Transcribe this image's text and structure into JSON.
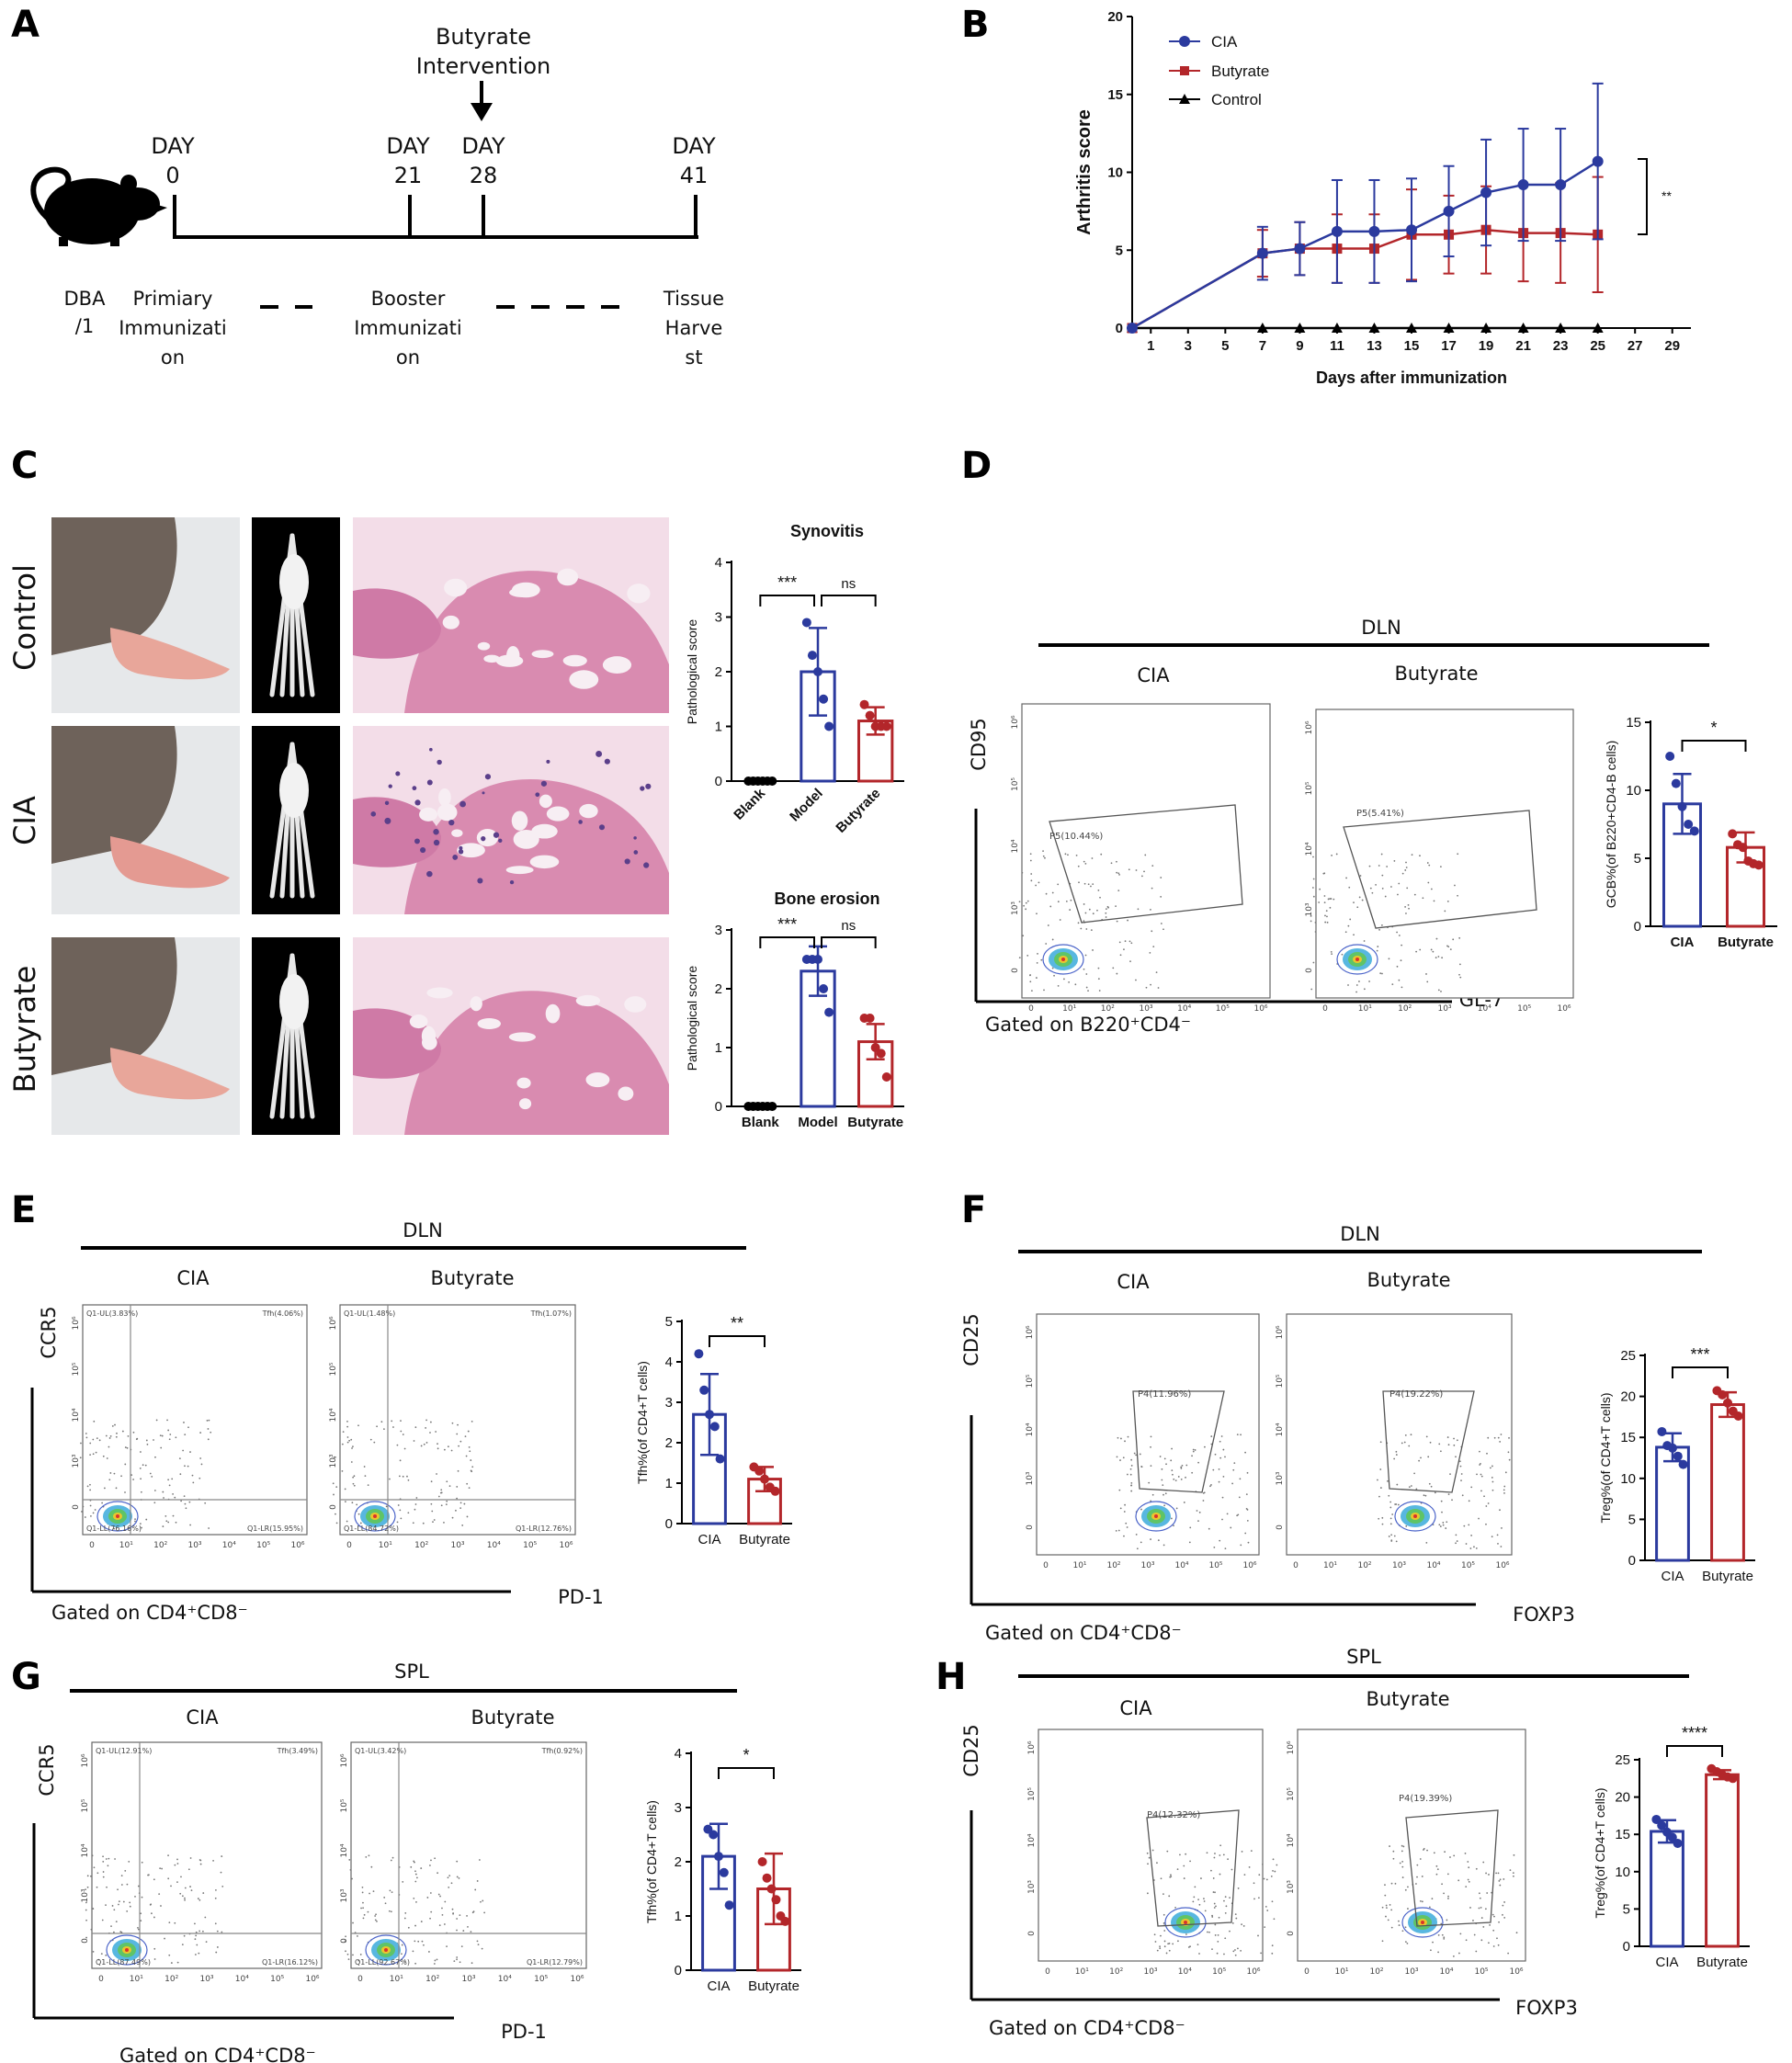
{
  "panels": {
    "A": {
      "label": "A",
      "intervention": [
        "Butyrate",
        "Intervention"
      ],
      "days": [
        {
          "label": "DAY",
          "num": "0"
        },
        {
          "label": "DAY",
          "num": "21"
        },
        {
          "label": "DAY",
          "num": "28"
        },
        {
          "label": "DAY",
          "num": "41"
        }
      ],
      "strain": [
        "DBA",
        "/1"
      ],
      "phases": [
        [
          "Primiary",
          "Immunizati",
          "on"
        ],
        [
          "Booster",
          "Immunizati",
          "on"
        ],
        [
          "Tissue",
          "Harve",
          "st"
        ]
      ]
    },
    "B": {
      "label": "B"
    },
    "C": {
      "label": "C",
      "rows": [
        "Control",
        "CIA",
        "Butyrate"
      ],
      "photo_colors": {
        "fur": "#6e625a",
        "paw": "#e8a69a",
        "bg": "#e6e8ea",
        "he_pink": "#d98bb0",
        "he_bg": "#f3dde8",
        "xray_bg": "#000000"
      }
    },
    "D": {
      "label": "D",
      "tissue": "DLN",
      "groups": [
        "CIA",
        "Butyrate"
      ],
      "yaxis": "CD95",
      "xaxis": "GL-7",
      "gated": "Gated on B220⁺CD4⁻",
      "gates": [
        "P5(10.44%)",
        "P5(5.41%)"
      ]
    },
    "E": {
      "label": "E",
      "tissue": "DLN",
      "groups": [
        "CIA",
        "Butyrate"
      ],
      "yaxis": "CCR5",
      "xaxis": "PD-1",
      "gated": "Gated on CD4⁺CD8⁻",
      "quadrants": [
        {
          "ul": "Q1-UL(3.83%)",
          "ur": "Tfh(4.06%)",
          "ll": "Q1-LL(76.16%)",
          "lr": "Q1-LR(15.95%)"
        },
        {
          "ul": "Q1-UL(1.48%)",
          "ur": "Tfh(1.07%)",
          "ll": "Q1-LL(84.72%)",
          "lr": "Q1-LR(12.76%)"
        }
      ]
    },
    "F": {
      "label": "F",
      "tissue": "DLN",
      "groups": [
        "CIA",
        "Butyrate"
      ],
      "yaxis": "CD25",
      "xaxis": "FOXP3",
      "gated": "Gated on CD4⁺CD8⁻",
      "gates": [
        "P4(11.96%)",
        "P4(19.22%)"
      ]
    },
    "G": {
      "label": "G",
      "tissue": "SPL",
      "groups": [
        "CIA",
        "Butyrate"
      ],
      "yaxis": "CCR5",
      "xaxis": "PD-1",
      "gated": "Gated on CD4⁺CD8⁻",
      "quadrants": [
        {
          "ul": "Q1-UL(12.91%)",
          "ur": "Tfh(3.49%)",
          "ll": "Q1-LL(87.49%)",
          "lr": "Q1-LR(16.12%)"
        },
        {
          "ul": "Q1-UL(3.42%)",
          "ur": "Tfh(0.92%)",
          "ll": "Q1-LL(92.67%)",
          "lr": "Q1-LR(12.79%)"
        }
      ]
    },
    "H": {
      "label": "H",
      "tissue": "SPL",
      "groups": [
        "CIA",
        "Butyrate"
      ],
      "yaxis": "CD25",
      "xaxis": "FOXP3",
      "gated": "Gated on CD4⁺CD8⁻",
      "gates": [
        "P4(12.32%)",
        "P4(19.39%)"
      ]
    }
  },
  "flow_ticks": {
    "x": [
      "0",
      "10¹",
      "10²",
      "10³",
      "10⁴",
      "10⁵",
      "10⁶"
    ],
    "y": [
      "0",
      "10³",
      "10⁴",
      "10⁵",
      "10⁶"
    ]
  },
  "colors": {
    "cia": "#2b3a9e",
    "butyrate": "#b3262a",
    "control": "#000000"
  },
  "chart_data": [
    {
      "id": "B",
      "type": "line",
      "xlabel": "Days after immunization",
      "ylabel": "Arthritis score",
      "xlim": [
        0,
        30
      ],
      "ylim": [
        0,
        20
      ],
      "xticks": [
        1,
        3,
        5,
        7,
        9,
        11,
        13,
        15,
        17,
        19,
        21,
        23,
        25,
        27,
        29
      ],
      "yticks": [
        0,
        5,
        10,
        15,
        20
      ],
      "legend": "top-left",
      "significance": "**",
      "series": [
        {
          "name": "CIA",
          "color": "#2b3a9e",
          "marker": "circle",
          "x": [
            0,
            7,
            9,
            11,
            13,
            15,
            17,
            19,
            21,
            23,
            25
          ],
          "y": [
            0,
            4.8,
            5.1,
            6.2,
            6.2,
            6.3,
            7.5,
            8.7,
            9.2,
            9.2,
            10.7
          ],
          "err": [
            0,
            1.7,
            1.7,
            3.3,
            3.3,
            3.3,
            2.9,
            3.4,
            3.6,
            3.6,
            5
          ]
        },
        {
          "name": "Butyrate",
          "color": "#b3262a",
          "marker": "square",
          "x": [
            0,
            7,
            9,
            11,
            13,
            15,
            17,
            19,
            21,
            23,
            25
          ],
          "y": [
            0,
            4.8,
            5.1,
            5.1,
            5.1,
            6,
            6,
            6.3,
            6.1,
            6.1,
            6
          ],
          "err": [
            0,
            1.5,
            1.7,
            2.2,
            2.2,
            2.9,
            2.5,
            2.8,
            3.1,
            3.2,
            3.7
          ]
        },
        {
          "name": "Control",
          "color": "#000000",
          "marker": "triangle",
          "x": [
            0,
            7,
            9,
            11,
            13,
            15,
            17,
            19,
            21,
            23,
            25
          ],
          "y": [
            0,
            0,
            0,
            0,
            0,
            0,
            0,
            0,
            0,
            0,
            0
          ]
        }
      ]
    },
    {
      "id": "C-synovitis",
      "type": "bar",
      "title": "Synovitis",
      "ylabel": "Pathological score",
      "categories": [
        "Blank",
        "Model",
        "Butyrate"
      ],
      "ylim": [
        0,
        4
      ],
      "yticks": [
        0,
        1,
        2,
        3,
        4
      ],
      "values": [
        0,
        2.0,
        1.1
      ],
      "err": [
        0,
        0.8,
        0.25
      ],
      "points": [
        [
          0,
          0,
          0,
          0,
          0,
          0
        ],
        [
          2.9,
          2.3,
          2.0,
          1.5,
          1.0
        ],
        [
          1.4,
          1.2,
          1.0,
          1.0,
          1.0
        ]
      ],
      "colors": [
        "#000000",
        "#2b3a9e",
        "#b3262a"
      ],
      "comparisons": [
        {
          "pair": [
            0,
            1
          ],
          "label": "***"
        },
        {
          "pair": [
            1,
            2
          ],
          "label": "ns"
        }
      ]
    },
    {
      "id": "C-bone-erosion",
      "type": "bar",
      "title": "Bone erosion",
      "ylabel": "Pathological score",
      "categories": [
        "Blank",
        "Model",
        "Butyrate"
      ],
      "ylim": [
        0,
        3
      ],
      "yticks": [
        0,
        1,
        2,
        3
      ],
      "values": [
        0,
        2.3,
        1.1
      ],
      "err": [
        0,
        0.42,
        0.3
      ],
      "points": [
        [
          0,
          0,
          0,
          0,
          0,
          0
        ],
        [
          2.5,
          2.5,
          2.5,
          2.0,
          1.6
        ],
        [
          1.5,
          1.5,
          1.0,
          0.9,
          0.5
        ]
      ],
      "colors": [
        "#000000",
        "#2b3a9e",
        "#b3262a"
      ],
      "comparisons": [
        {
          "pair": [
            0,
            1
          ],
          "label": "***"
        },
        {
          "pair": [
            1,
            2
          ],
          "label": "ns"
        }
      ]
    },
    {
      "id": "D-bar",
      "type": "bar",
      "ylabel": "GCB%(of B220+CD4-B cells)",
      "categories": [
        "CIA",
        "Butyrate"
      ],
      "ylim": [
        0,
        15
      ],
      "yticks": [
        0,
        5,
        10,
        15
      ],
      "values": [
        9.0,
        5.8
      ],
      "err": [
        2.2,
        1.1
      ],
      "points": [
        [
          12.5,
          10.5,
          8.8,
          7.5,
          7.0
        ],
        [
          6.8,
          6.0,
          5.8,
          4.8,
          4.6,
          4.5
        ]
      ],
      "colors": [
        "#2b3a9e",
        "#b3262a"
      ],
      "comparisons": [
        {
          "pair": [
            0,
            1
          ],
          "label": "*"
        }
      ]
    },
    {
      "id": "E-bar",
      "type": "bar",
      "ylabel": "Tfh%(of CD4+T cells)",
      "categories": [
        "CIA",
        "Butyrate"
      ],
      "ylim": [
        0,
        5
      ],
      "yticks": [
        0,
        1,
        2,
        3,
        4,
        5
      ],
      "values": [
        2.7,
        1.1
      ],
      "err": [
        1.0,
        0.3
      ],
      "points": [
        [
          4.2,
          3.3,
          2.7,
          2.4,
          1.6
        ],
        [
          1.4,
          1.3,
          1.1,
          0.9,
          0.8
        ]
      ],
      "colors": [
        "#2b3a9e",
        "#b3262a"
      ],
      "comparisons": [
        {
          "pair": [
            0,
            1
          ],
          "label": "**"
        }
      ]
    },
    {
      "id": "F-bar",
      "type": "bar",
      "ylabel": "Treg%(of CD4+T cells)",
      "categories": [
        "CIA",
        "Butyrate"
      ],
      "ylim": [
        0,
        25
      ],
      "yticks": [
        0,
        5,
        10,
        15,
        20,
        25
      ],
      "values": [
        13.8,
        19.0
      ],
      "err": [
        1.7,
        1.5
      ],
      "points": [
        [
          15.7,
          14.0,
          13.7,
          12.7,
          11.7
        ],
        [
          20.7,
          20.2,
          19.2,
          18.2,
          17.6
        ]
      ],
      "colors": [
        "#2b3a9e",
        "#b3262a"
      ],
      "comparisons": [
        {
          "pair": [
            0,
            1
          ],
          "label": "***"
        }
      ]
    },
    {
      "id": "G-bar",
      "type": "bar",
      "ylabel": "Tfh%(of CD4+T cells)",
      "categories": [
        "CIA",
        "Butyrate"
      ],
      "ylim": [
        0,
        4
      ],
      "yticks": [
        0,
        1,
        2,
        3,
        4
      ],
      "values": [
        2.1,
        1.5
      ],
      "err": [
        0.6,
        0.65
      ],
      "points": [
        [
          2.6,
          2.5,
          2.1,
          1.8,
          1.2
        ],
        [
          2.0,
          1.7,
          1.5,
          1.3,
          1.0,
          0.9
        ]
      ],
      "colors": [
        "#2b3a9e",
        "#b3262a"
      ],
      "comparisons": [
        {
          "pair": [
            0,
            1
          ],
          "label": "*"
        }
      ]
    },
    {
      "id": "H-bar",
      "type": "bar",
      "ylabel": "Treg%(of CD4+T cells)",
      "categories": [
        "CIA",
        "Butyrate"
      ],
      "ylim": [
        0,
        25
      ],
      "yticks": [
        0,
        5,
        10,
        15,
        20,
        25
      ],
      "values": [
        15.4,
        23.0
      ],
      "err": [
        1.5,
        0.6
      ],
      "points": [
        [
          17.0,
          16.2,
          15.3,
          14.6,
          13.8
        ],
        [
          23.8,
          23.4,
          23.0,
          22.7,
          22.5
        ]
      ],
      "colors": [
        "#2b3a9e",
        "#b3262a"
      ],
      "comparisons": [
        {
          "pair": [
            0,
            1
          ],
          "label": "****"
        }
      ]
    }
  ]
}
